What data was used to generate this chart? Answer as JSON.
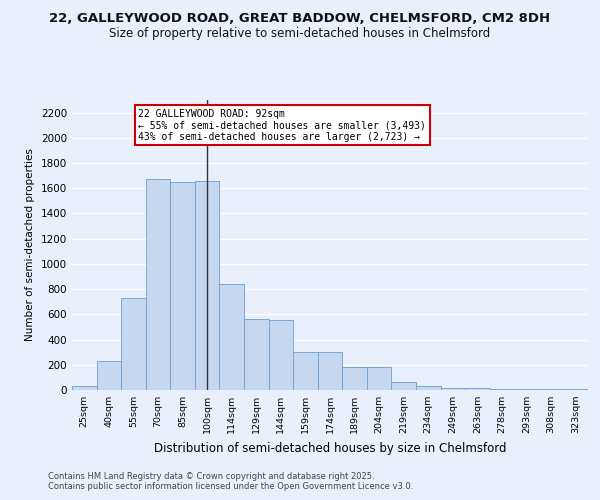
{
  "title1": "22, GALLEYWOOD ROAD, GREAT BADDOW, CHELMSFORD, CM2 8DH",
  "title2": "Size of property relative to semi-detached houses in Chelmsford",
  "xlabel": "Distribution of semi-detached houses by size in Chelmsford",
  "ylabel": "Number of semi-detached properties",
  "categories": [
    "25sqm",
    "40sqm",
    "55sqm",
    "70sqm",
    "85sqm",
    "100sqm",
    "114sqm",
    "129sqm",
    "144sqm",
    "159sqm",
    "174sqm",
    "189sqm",
    "204sqm",
    "219sqm",
    "234sqm",
    "249sqm",
    "263sqm",
    "278sqm",
    "293sqm",
    "308sqm",
    "323sqm"
  ],
  "values": [
    35,
    230,
    730,
    1670,
    1650,
    1660,
    840,
    560,
    555,
    300,
    300,
    180,
    180,
    60,
    35,
    15,
    15,
    10,
    10,
    5,
    5
  ],
  "bar_color": "#c5d8f0",
  "bar_edge_color": "#6aa0d4",
  "highlight_index": 5,
  "highlight_line_color": "#333333",
  "annotation_title": "22 GALLEYWOOD ROAD: 92sqm",
  "annotation_line1": "← 55% of semi-detached houses are smaller (3,493)",
  "annotation_line2": "43% of semi-detached houses are larger (2,723) →",
  "annotation_box_color": "#ffffff",
  "annotation_box_edge": "#cc0000",
  "ylim": [
    0,
    2300
  ],
  "yticks": [
    0,
    200,
    400,
    600,
    800,
    1000,
    1200,
    1400,
    1600,
    1800,
    2000,
    2200
  ],
  "footnote1": "Contains HM Land Registry data © Crown copyright and database right 2025.",
  "footnote2": "Contains public sector information licensed under the Open Government Licence v3.0.",
  "bg_color": "#eaf0fb",
  "grid_color": "#ffffff",
  "title1_fontsize": 9.5,
  "title2_fontsize": 8.5,
  "ann_fontsize": 7.0,
  "footnote_fontsize": 6.0
}
